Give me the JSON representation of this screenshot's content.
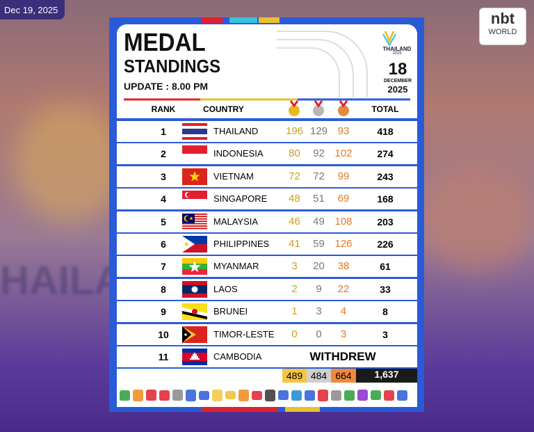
{
  "screen": {
    "date": "Dec 19, 2025",
    "brand": {
      "name": "nbt",
      "sub": "WORLD"
    }
  },
  "card": {
    "title": [
      "MEDAL",
      "STANDINGS"
    ],
    "update": "UPDATE : 8.00 PM",
    "day": "18",
    "month": "DECEMBER",
    "year": "2025",
    "logo": [
      "THAILAND",
      "2025"
    ],
    "table": {
      "headers": [
        "RANK",
        "COUNTRY",
        "TOTAL"
      ],
      "rows": [
        [
          1,
          "THAILAND",
          196,
          129,
          93,
          418
        ],
        [
          2,
          "INDONESIA",
          80,
          92,
          102,
          274
        ],
        [
          3,
          "VIETNAM",
          72,
          72,
          99,
          243
        ],
        [
          4,
          "SINGAPORE",
          48,
          51,
          69,
          168
        ],
        [
          5,
          "MALAYSIA",
          46,
          49,
          108,
          203
        ],
        [
          6,
          "PHILIPPINES",
          41,
          59,
          126,
          226
        ],
        [
          7,
          "MYANMAR",
          3,
          20,
          38,
          61
        ],
        [
          8,
          "LAOS",
          2,
          9,
          22,
          33
        ],
        [
          9,
          "BRUNEI",
          1,
          3,
          4,
          8
        ],
        [
          10,
          "TIMOR-LESTE",
          0,
          0,
          3,
          3
        ],
        [
          11,
          "CAMBODIA",
          "WITHDREW"
        ]
      ],
      "totals": [
        489,
        484,
        664,
        "1,637"
      ]
    }
  }
}
